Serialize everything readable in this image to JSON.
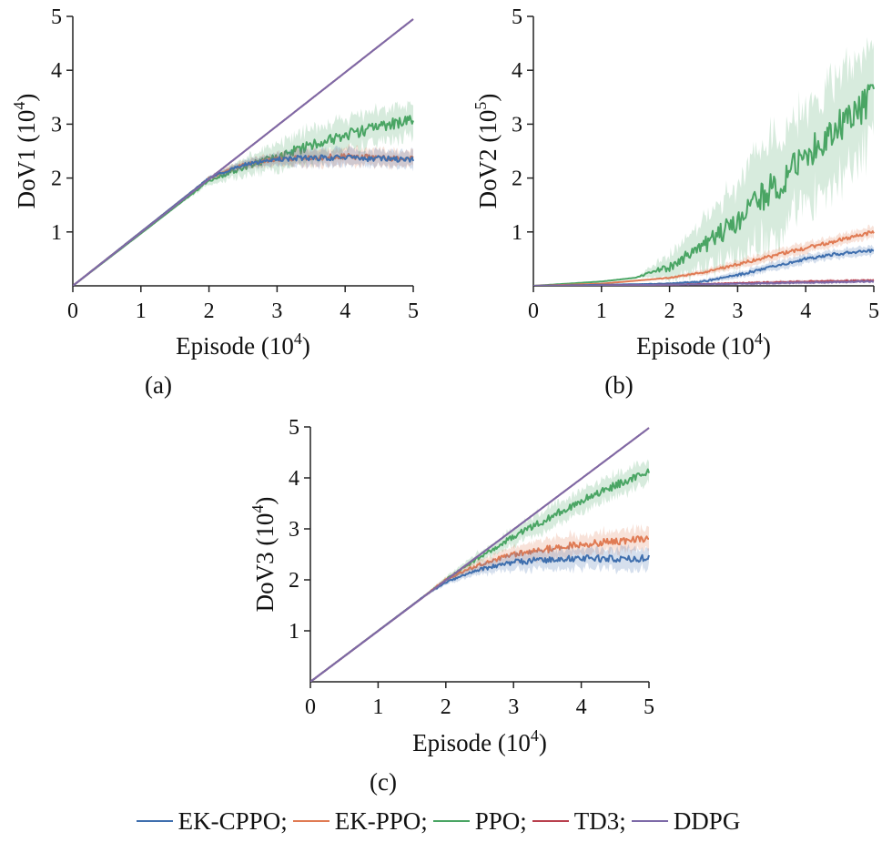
{
  "colors": {
    "EK-CPPO": "#3f6fae",
    "EK-PPO": "#e07b54",
    "PPO": "#4aa564",
    "TD3": "#b9404e",
    "DDPG": "#7d6aa8"
  },
  "chart_data": [
    {
      "type": "line",
      "panel_label": "(a)",
      "xlabel": "Episode",
      "xlabel_unit_base": "10",
      "xlabel_unit_exp": "4",
      "ylabel": "DoV1",
      "ylabel_unit_base": "10",
      "ylabel_unit_exp": "4",
      "xlim": [
        0,
        5
      ],
      "ylim": [
        0,
        5
      ],
      "xticks": [
        "0",
        "1",
        "2",
        "3",
        "4",
        "5"
      ],
      "yticks": [
        "1",
        "2",
        "3",
        "4",
        "5"
      ],
      "grid": false,
      "series": [
        {
          "name": "EK-CPPO",
          "x": [
            0,
            1,
            2,
            2.5,
            3,
            3.5,
            4,
            4.5,
            5
          ],
          "y": [
            0,
            1.0,
            2.0,
            2.25,
            2.35,
            2.38,
            2.37,
            2.36,
            2.35
          ],
          "band": 0.15
        },
        {
          "name": "EK-PPO",
          "x": [
            0,
            1,
            2,
            2.5,
            3,
            3.5,
            4,
            4.5,
            5
          ],
          "y": [
            0,
            1.0,
            2.0,
            2.25,
            2.35,
            2.38,
            2.4,
            2.38,
            2.35
          ],
          "band": 0.15
        },
        {
          "name": "PPO",
          "x": [
            0,
            1,
            2,
            2.5,
            3,
            3.5,
            4,
            4.5,
            5
          ],
          "y": [
            0,
            0.97,
            1.95,
            2.2,
            2.4,
            2.6,
            2.8,
            2.95,
            3.1
          ],
          "band": 0.3
        },
        {
          "name": "TD3",
          "x": [
            0,
            5
          ],
          "y": [
            0,
            4.95
          ],
          "band": 0
        },
        {
          "name": "DDPG",
          "x": [
            0,
            5
          ],
          "y": [
            0,
            4.95
          ],
          "band": 0
        }
      ]
    },
    {
      "type": "line",
      "panel_label": "(b)",
      "xlabel": "Episode",
      "xlabel_unit_base": "10",
      "xlabel_unit_exp": "4",
      "ylabel": "DoV2",
      "ylabel_unit_base": "10",
      "ylabel_unit_exp": "5",
      "xlim": [
        0,
        5
      ],
      "ylim": [
        0,
        5
      ],
      "xticks": [
        "0",
        "1",
        "2",
        "3",
        "4",
        "5"
      ],
      "yticks": [
        "1",
        "2",
        "3",
        "4",
        "5"
      ],
      "grid": false,
      "series": [
        {
          "name": "EK-CPPO",
          "x": [
            0,
            1,
            2,
            2.5,
            3,
            3.5,
            4,
            4.5,
            5
          ],
          "y": [
            0,
            0.02,
            0.04,
            0.08,
            0.2,
            0.35,
            0.5,
            0.6,
            0.65
          ],
          "band": 0.08
        },
        {
          "name": "EK-PPO",
          "x": [
            0,
            1,
            2,
            2.5,
            3,
            3.5,
            4,
            4.5,
            5
          ],
          "y": [
            0,
            0.04,
            0.15,
            0.25,
            0.4,
            0.55,
            0.7,
            0.85,
            1.0
          ],
          "band": 0.1
        },
        {
          "name": "PPO",
          "x": [
            0,
            1,
            1.5,
            2,
            2.5,
            3,
            3.5,
            4,
            4.5,
            5
          ],
          "y": [
            0,
            0.08,
            0.15,
            0.35,
            0.75,
            1.2,
            1.8,
            2.4,
            3.0,
            3.5
          ],
          "band": 0.9
        },
        {
          "name": "TD3",
          "x": [
            0,
            2,
            3,
            4,
            5
          ],
          "y": [
            0,
            0.02,
            0.05,
            0.08,
            0.1
          ],
          "band": 0.03
        },
        {
          "name": "DDPG",
          "x": [
            0,
            2,
            3,
            4,
            5
          ],
          "y": [
            0,
            0.02,
            0.04,
            0.06,
            0.08
          ],
          "band": 0.03
        }
      ]
    },
    {
      "type": "line",
      "panel_label": "(c)",
      "xlabel": "Episode",
      "xlabel_unit_base": "10",
      "xlabel_unit_exp": "4",
      "ylabel": "DoV3",
      "ylabel_unit_base": "10",
      "ylabel_unit_exp": "4",
      "xlim": [
        0,
        5
      ],
      "ylim": [
        0,
        5
      ],
      "xticks": [
        "0",
        "1",
        "2",
        "3",
        "4",
        "5"
      ],
      "yticks": [
        "1",
        "2",
        "3",
        "4",
        "5"
      ],
      "grid": false,
      "series": [
        {
          "name": "EK-CPPO",
          "x": [
            0,
            1,
            1.7,
            2,
            2.5,
            3,
            3.5,
            4,
            4.5,
            5
          ],
          "y": [
            0,
            1.0,
            1.7,
            1.95,
            2.2,
            2.35,
            2.4,
            2.42,
            2.42,
            2.42
          ],
          "band": 0.2
        },
        {
          "name": "EK-PPO",
          "x": [
            0,
            1,
            1.7,
            2,
            2.5,
            3,
            3.5,
            4,
            4.5,
            5
          ],
          "y": [
            0,
            1.0,
            1.7,
            2.0,
            2.3,
            2.5,
            2.6,
            2.7,
            2.75,
            2.8
          ],
          "band": 0.2
        },
        {
          "name": "PPO",
          "x": [
            0,
            1,
            2,
            2.5,
            3,
            3.5,
            4,
            4.5,
            5
          ],
          "y": [
            0,
            1.0,
            2.0,
            2.45,
            2.85,
            3.2,
            3.55,
            3.85,
            4.15
          ],
          "band": 0.22
        },
        {
          "name": "TD3",
          "x": [
            0,
            5
          ],
          "y": [
            0,
            4.98
          ],
          "band": 0
        },
        {
          "name": "DDPG",
          "x": [
            0,
            5
          ],
          "y": [
            0,
            4.98
          ],
          "band": 0
        }
      ]
    }
  ],
  "legend": {
    "entries": [
      {
        "name": "EK-CPPO",
        "sep": ";"
      },
      {
        "name": "EK-PPO",
        "sep": ";"
      },
      {
        "name": "PPO",
        "sep": ";"
      },
      {
        "name": "TD3",
        "sep": ";"
      },
      {
        "name": "DDPG",
        "sep": ""
      }
    ]
  }
}
